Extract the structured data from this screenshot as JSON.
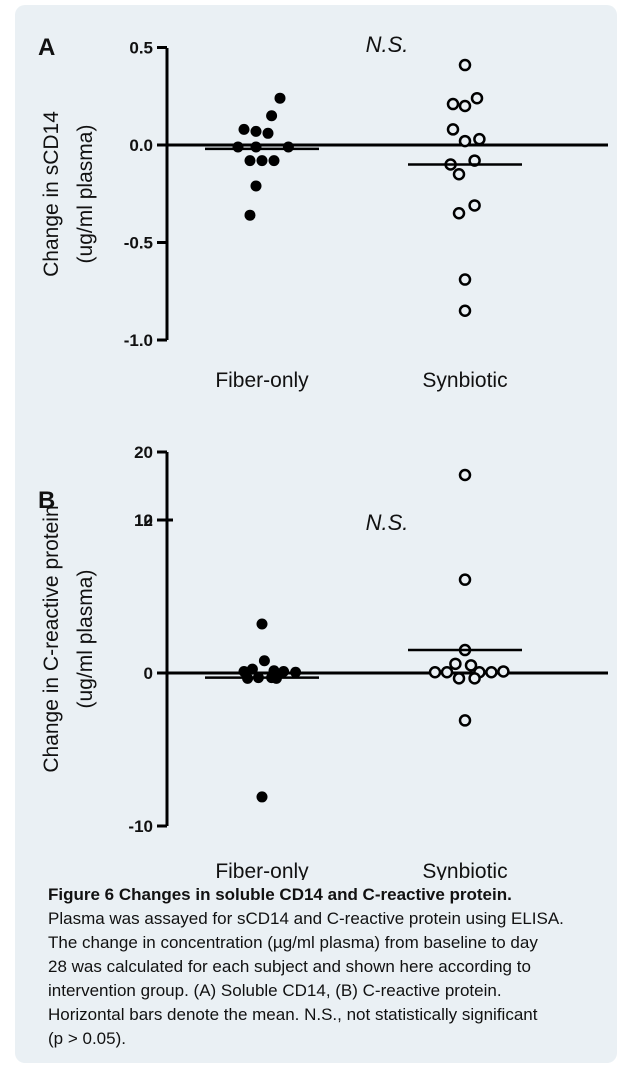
{
  "chart_data": [
    {
      "type": "scatter",
      "panel_letter": "A",
      "annotation": "N.S.",
      "ylabel_lines": [
        "Change in sCD14",
        "(ug/ml plasma)"
      ],
      "categories": [
        "Fiber-only",
        "Synbiotic"
      ],
      "ylim": [
        -1.0,
        0.5
      ],
      "yticks": [
        0.5,
        0.0,
        -0.5,
        -1.0
      ],
      "ytick_labels": [
        "0.5",
        "0.0",
        "-0.5",
        "-1.0"
      ],
      "series": [
        {
          "category": "Fiber-only",
          "marker": "filled-circle",
          "points": [
            {
              "offset": -0.15,
              "y": 0.08
            },
            {
              "offset": -0.05,
              "y": 0.07
            },
            {
              "offset": 0.05,
              "y": 0.06
            },
            {
              "offset": 0.15,
              "y": 0.24
            },
            {
              "offset": 0.08,
              "y": 0.15
            },
            {
              "offset": -0.2,
              "y": -0.01
            },
            {
              "offset": -0.05,
              "y": -0.01
            },
            {
              "offset": 0.22,
              "y": -0.01
            },
            {
              "offset": -0.1,
              "y": -0.08
            },
            {
              "offset": 0.0,
              "y": -0.08
            },
            {
              "offset": 0.1,
              "y": -0.08
            },
            {
              "offset": -0.05,
              "y": -0.21
            },
            {
              "offset": -0.1,
              "y": -0.36
            }
          ],
          "mean": -0.02
        },
        {
          "category": "Synbiotic",
          "marker": "open-circle",
          "points": [
            {
              "offset": 0.0,
              "y": 0.41
            },
            {
              "offset": -0.1,
              "y": 0.21
            },
            {
              "offset": 0.0,
              "y": 0.2
            },
            {
              "offset": 0.1,
              "y": 0.24
            },
            {
              "offset": -0.1,
              "y": 0.08
            },
            {
              "offset": 0.0,
              "y": 0.02
            },
            {
              "offset": 0.12,
              "y": 0.03
            },
            {
              "offset": -0.12,
              "y": -0.1
            },
            {
              "offset": 0.08,
              "y": -0.08
            },
            {
              "offset": -0.05,
              "y": -0.15
            },
            {
              "offset": -0.05,
              "y": -0.35
            },
            {
              "offset": 0.08,
              "y": -0.31
            },
            {
              "offset": 0.0,
              "y": -0.69
            },
            {
              "offset": 0.0,
              "y": -0.85
            }
          ],
          "mean": -0.1
        }
      ]
    },
    {
      "type": "scatter",
      "panel_letter": "B",
      "annotation": "N.S.",
      "ylabel_lines": [
        "Change in C-reactive protein",
        "(ug/ml plasma)"
      ],
      "categories": [
        "Fiber-only",
        "Synbiotic"
      ],
      "ylim": [
        -10,
        20
      ],
      "axis_break": {
        "lower": 10,
        "upper": 12
      },
      "yticks": [
        20,
        12,
        10,
        0,
        -10
      ],
      "ytick_labels": [
        "20",
        "12",
        "10",
        "0",
        "-10"
      ],
      "series": [
        {
          "category": "Fiber-only",
          "marker": "filled-circle",
          "points": [
            {
              "offset": -0.15,
              "y": 0.1
            },
            {
              "offset": -0.08,
              "y": 0.25
            },
            {
              "offset": 0.02,
              "y": 0.8
            },
            {
              "offset": 0.1,
              "y": 0.15
            },
            {
              "offset": 0.18,
              "y": 0.1
            },
            {
              "offset": 0.28,
              "y": 0.05
            },
            {
              "offset": -0.03,
              "y": -0.3
            },
            {
              "offset": 0.08,
              "y": -0.3
            },
            {
              "offset": -0.12,
              "y": -0.35
            },
            {
              "offset": 0.12,
              "y": -0.35
            },
            {
              "offset": 0.0,
              "y": 3.2
            },
            {
              "offset": 0.0,
              "y": -8.1
            }
          ],
          "mean": -0.3
        },
        {
          "category": "Synbiotic",
          "marker": "open-circle",
          "points": [
            {
              "offset": 0.0,
              "y": 16.0
            },
            {
              "offset": 0.0,
              "y": 6.1
            },
            {
              "offset": 0.0,
              "y": 1.5
            },
            {
              "offset": -0.08,
              "y": 0.6
            },
            {
              "offset": 0.05,
              "y": 0.5
            },
            {
              "offset": -0.25,
              "y": 0.05
            },
            {
              "offset": -0.15,
              "y": 0.05
            },
            {
              "offset": 0.12,
              "y": 0.05
            },
            {
              "offset": 0.22,
              "y": 0.05
            },
            {
              "offset": 0.32,
              "y": 0.1
            },
            {
              "offset": -0.05,
              "y": -0.35
            },
            {
              "offset": 0.08,
              "y": -0.35
            },
            {
              "offset": 0.0,
              "y": -3.1
            }
          ],
          "mean": 1.5
        }
      ]
    }
  ],
  "caption": {
    "title": "Figure 6 Changes in soluble CD14 and C-reactive protein.",
    "lines": [
      "Plasma was assayed for sCD14 and C-reactive protein using ELISA.",
      "The change in concentration (µg/ml plasma) from baseline to day",
      "28 was calculated for each subject and shown here according to",
      "intervention group. (A) Soluble CD14, (B) C-reactive protein.",
      "Horizontal bars denote the mean. N.S., not statistically significant",
      "(p > 0.05)."
    ]
  }
}
